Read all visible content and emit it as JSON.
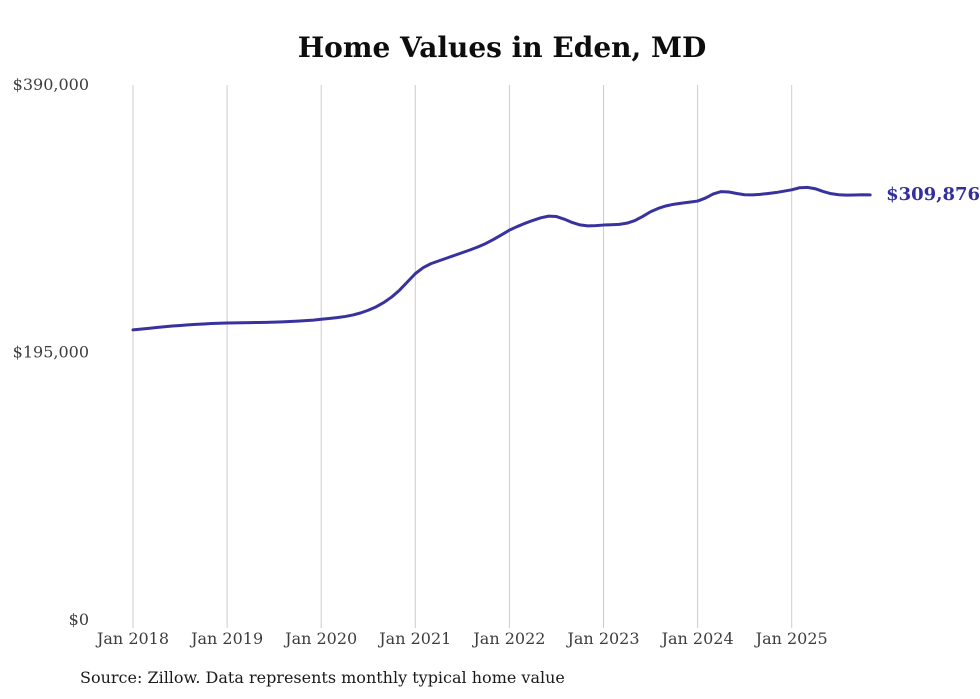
{
  "chart_data": {
    "type": "line",
    "title": "Home Values in Eden, MD",
    "source_note": "Source: Zillow. Data represents monthly typical home value",
    "end_label": "$309,876",
    "line_color": "#38329E",
    "end_label_color": "#332E9B",
    "grid_color": "#cccccc",
    "legend_position": "none",
    "grid": "vertical-only",
    "ylim": [
      0,
      390000
    ],
    "y_ticks": [
      {
        "label": "$390,000",
        "value": 390000
      },
      {
        "label": "$195,000",
        "value": 195000
      },
      {
        "label": "$0",
        "value": 0
      }
    ],
    "x_ticks": [
      {
        "label": "Jan 2018",
        "month": "2018-01"
      },
      {
        "label": "Jan 2019",
        "month": "2019-01"
      },
      {
        "label": "Jan 2020",
        "month": "2020-01"
      },
      {
        "label": "Jan 2021",
        "month": "2021-01"
      },
      {
        "label": "Jan 2022",
        "month": "2022-01"
      },
      {
        "label": "Jan 2023",
        "month": "2023-01"
      },
      {
        "label": "Jan 2024",
        "month": "2024-01"
      },
      {
        "label": "Jan 2025",
        "month": "2025-01"
      }
    ],
    "series": [
      {
        "name": "Typical home value",
        "x": [
          "2018-01",
          "2018-02",
          "2018-03",
          "2018-04",
          "2018-05",
          "2018-06",
          "2018-07",
          "2018-08",
          "2018-09",
          "2018-10",
          "2018-11",
          "2018-12",
          "2019-01",
          "2019-02",
          "2019-03",
          "2019-04",
          "2019-05",
          "2019-06",
          "2019-07",
          "2019-08",
          "2019-09",
          "2019-10",
          "2019-11",
          "2019-12",
          "2020-01",
          "2020-02",
          "2020-03",
          "2020-04",
          "2020-05",
          "2020-06",
          "2020-07",
          "2020-08",
          "2020-09",
          "2020-10",
          "2020-11",
          "2020-12",
          "2021-01",
          "2021-02",
          "2021-03",
          "2021-04",
          "2021-05",
          "2021-06",
          "2021-07",
          "2021-08",
          "2021-09",
          "2021-10",
          "2021-11",
          "2021-12",
          "2022-01",
          "2022-02",
          "2022-03",
          "2022-04",
          "2022-05",
          "2022-06",
          "2022-07",
          "2022-08",
          "2022-09",
          "2022-10",
          "2022-11",
          "2022-12",
          "2023-01",
          "2023-02",
          "2023-03",
          "2023-04",
          "2023-05",
          "2023-06",
          "2023-07",
          "2023-08",
          "2023-09",
          "2023-10",
          "2023-11",
          "2023-12",
          "2024-01",
          "2024-02",
          "2024-03",
          "2024-04",
          "2024-05",
          "2024-06",
          "2024-07",
          "2024-08",
          "2024-09",
          "2024-10",
          "2024-11",
          "2024-12",
          "2025-01",
          "2025-02",
          "2025-03",
          "2025-04",
          "2025-05",
          "2025-06",
          "2025-07",
          "2025-08",
          "2025-09",
          "2025-10",
          "2025-11"
        ],
        "values": [
          211500,
          212000,
          212600,
          213200,
          213800,
          214300,
          214700,
          215100,
          215500,
          215800,
          216100,
          216300,
          216500,
          216600,
          216700,
          216800,
          216900,
          217000,
          217100,
          217300,
          217600,
          217900,
          218200,
          218600,
          219200,
          219800,
          220400,
          221200,
          222300,
          223800,
          225800,
          228300,
          231500,
          235500,
          240500,
          246500,
          252500,
          256800,
          259800,
          261800,
          263800,
          265800,
          267800,
          269800,
          272000,
          274500,
          277500,
          280800,
          284200,
          286800,
          289200,
          291300,
          293200,
          294400,
          294100,
          292200,
          289800,
          288000,
          287300,
          287500,
          287900,
          288100,
          288400,
          289300,
          291200,
          294200,
          297600,
          300100,
          301900,
          303100,
          303900,
          304600,
          305400,
          307600,
          310600,
          312300,
          312000,
          310900,
          310000,
          309900,
          310300,
          310900,
          311600,
          312600,
          313600,
          315100,
          315400,
          314400,
          312400,
          310800,
          310000,
          309700,
          309850,
          310000,
          309876
        ]
      }
    ],
    "final_value": 309876
  }
}
